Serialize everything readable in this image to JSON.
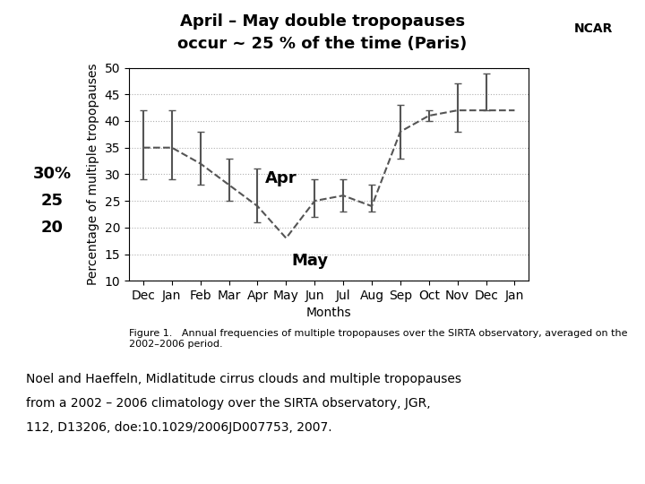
{
  "chart_data": {
    "type": "line",
    "title": "April – May double tropopauses",
    "subtitle": "occur ~ 25 % of the time (Paris)",
    "categories": [
      "Dec",
      "Jan",
      "Feb",
      "Mar",
      "Apr",
      "May",
      "Jun",
      "Jul",
      "Aug",
      "Sep",
      "Oct",
      "Nov",
      "Dec",
      "Jan"
    ],
    "values": [
      35,
      35,
      32,
      28,
      24,
      18,
      25,
      26,
      24,
      38,
      41,
      42,
      42,
      42
    ],
    "error_low": [
      6,
      6,
      4,
      3,
      3,
      0,
      3,
      3,
      1,
      5,
      1,
      4,
      0,
      0
    ],
    "error_high": [
      7,
      7,
      6,
      5,
      7,
      0,
      4,
      3,
      4,
      5,
      1,
      5,
      7,
      0
    ],
    "y_label": "Percentage of multiple tropopauses",
    "x_label": "Months",
    "ylim": [
      10,
      50
    ],
    "yticks": [
      10,
      15,
      20,
      25,
      30,
      35,
      40,
      45,
      50
    ],
    "color": "#555555",
    "line_style": "dashed",
    "grid": "y",
    "annotations": [
      {
        "text": "Apr",
        "category": "Apr"
      },
      {
        "text": "May",
        "category": "May"
      },
      {
        "text": "NCAR"
      }
    ],
    "side_labels": [
      {
        "value": 30,
        "label": "30%"
      },
      {
        "value": 25,
        "label": "25"
      },
      {
        "value": 20,
        "label": "20"
      }
    ],
    "caption": "Figure 1.   Annual frequencies of multiple tropopauses over the SIRTA observatory, averaged on the 2002–2006 period.",
    "footnote": [
      "Noel and Haeffeln, Midlatitude cirrus clouds and multiple tropopauses",
      "from a 2002 – 2006 climatology over the SIRTA observatory, JGR,",
      "112, D13206, doe:10.1029/2006JD007753, 2007."
    ]
  }
}
